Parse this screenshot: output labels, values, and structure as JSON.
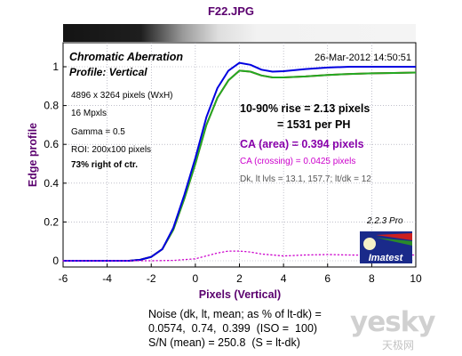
{
  "file_title": "F22.JPG",
  "panel": {
    "title": "Chromatic Aberration",
    "subtitle": "Profile: Vertical",
    "timestamp": "26-Mar-2012 14:50:51",
    "info_lines": [
      "4896 x 3264 pixels (WxH)",
      "16 Mpxls",
      "Gamma = 0.5",
      "ROI: 200x100 pixels"
    ],
    "info_bold": "73% right of ctr.",
    "rise_line1": "10-90% rise = 2.13 pixels",
    "rise_line2": "= 1531 per PH",
    "ca_area": "CA (area) = 0.394 pixels",
    "ca_crossing": "CA (crossing) = 0.0425 pixels",
    "levels": "Dk, lt lvls = 13.1, 157.7;  lt/dk = 12",
    "version": "2.2.3  Pro",
    "logo_text": "Imatest"
  },
  "footer": {
    "noise_line1": "Noise (dk, lt, mean; as % of lt-dk) =",
    "noise_line2": "0.0574,  0.74,  0.399  (ISO =  100)",
    "sn_line": "S/N (mean) = 250.8  (S = lt-dk)"
  },
  "watermark": {
    "main": "yesky",
    "sub": "天极网"
  },
  "colors": {
    "title": "#5a006e",
    "red": "#d01010",
    "green": "#22aa22",
    "blue": "#0000e0",
    "magenta": "#cc00cc",
    "ca_area": "#8800aa"
  },
  "chart_data": {
    "type": "line",
    "xlabel": "Pixels (Vertical)",
    "ylabel": "Edge profile",
    "xlim": [
      -6,
      10
    ],
    "ylim": [
      0,
      1.1
    ],
    "xticks": [
      -6,
      -4,
      -2,
      0,
      2,
      4,
      6,
      8,
      10
    ],
    "yticks": [
      0,
      0.2,
      0.4,
      0.6,
      0.8,
      1
    ],
    "series": [
      {
        "color": "red",
        "x": [
          -6,
          -5,
          -4,
          -3,
          -2.5,
          -2,
          -1.5,
          -1,
          -0.5,
          0,
          0.5,
          1,
          1.5,
          2,
          2.5,
          3,
          3.5,
          4,
          5,
          6,
          7,
          8,
          9,
          10
        ],
        "y": [
          0,
          0,
          0,
          0,
          0.005,
          0.02,
          0.06,
          0.16,
          0.32,
          0.5,
          0.7,
          0.84,
          0.93,
          0.98,
          0.975,
          0.955,
          0.945,
          0.945,
          0.95,
          0.958,
          0.963,
          0.966,
          0.968,
          0.97
        ]
      },
      {
        "color": "green",
        "x": [
          -6,
          -5,
          -4,
          -3,
          -2.5,
          -2,
          -1.5,
          -1,
          -0.5,
          0,
          0.5,
          1,
          1.5,
          2,
          2.5,
          3,
          3.5,
          4,
          5,
          6,
          7,
          8,
          9,
          10
        ],
        "y": [
          0,
          0,
          0,
          0,
          0.005,
          0.02,
          0.06,
          0.16,
          0.32,
          0.5,
          0.7,
          0.84,
          0.93,
          0.98,
          0.975,
          0.955,
          0.945,
          0.945,
          0.95,
          0.958,
          0.963,
          0.966,
          0.968,
          0.97
        ]
      },
      {
        "color": "blue",
        "x": [
          -6,
          -5,
          -4,
          -3,
          -2.5,
          -2,
          -1.5,
          -1,
          -0.5,
          0,
          0.5,
          1,
          1.5,
          2,
          2.5,
          3,
          3.5,
          4,
          5,
          6,
          7,
          8,
          9,
          10
        ],
        "y": [
          0,
          0,
          0,
          0,
          0.005,
          0.02,
          0.06,
          0.17,
          0.34,
          0.53,
          0.74,
          0.89,
          0.98,
          1.02,
          1.01,
          0.985,
          0.975,
          0.977,
          0.988,
          0.996,
          1.0,
          1.0,
          1.0,
          1.0
        ]
      },
      {
        "color": "magenta",
        "dotted": true,
        "x": [
          -6,
          -4,
          -2,
          -1,
          0,
          1,
          1.5,
          2,
          2.5,
          3,
          4,
          5,
          6,
          7,
          8,
          9,
          10
        ],
        "y": [
          0,
          0,
          0,
          0.002,
          0.01,
          0.04,
          0.05,
          0.05,
          0.045,
          0.035,
          0.025,
          0.03,
          0.032,
          0.03,
          0.028,
          0.03,
          0.03
        ]
      }
    ]
  }
}
